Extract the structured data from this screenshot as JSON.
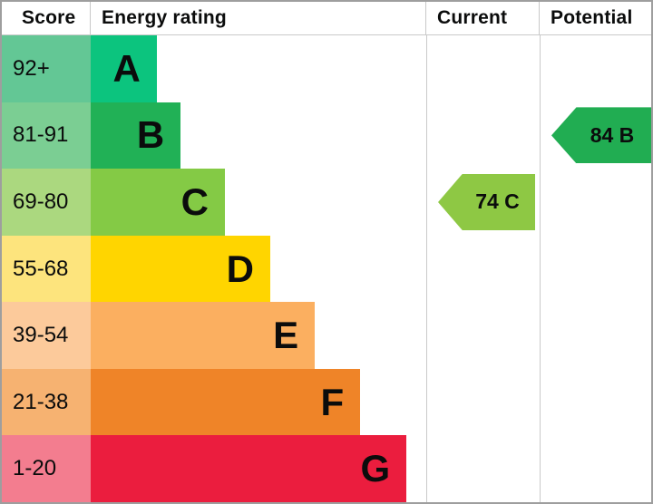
{
  "header": {
    "score": "Score",
    "energy_rating": "Energy rating",
    "current": "Current",
    "potential": "Potential"
  },
  "chart_data": {
    "type": "bar",
    "subtype": "epc-energy-rating-scale",
    "orientation": "horizontal",
    "columns": [
      "Score",
      "Energy rating",
      "Current",
      "Potential"
    ],
    "bands": [
      {
        "letter": "A",
        "score_range": "92+",
        "score_min": 92,
        "score_max": 100,
        "bar_color": "#0cc47e",
        "score_bg": "#63c795",
        "bar_width_pct": 19.7
      },
      {
        "letter": "B",
        "score_range": "81-91",
        "score_min": 81,
        "score_max": 91,
        "bar_color": "#21b156",
        "score_bg": "#7bce93",
        "bar_width_pct": 26.8
      },
      {
        "letter": "C",
        "score_range": "69-80",
        "score_min": 69,
        "score_max": 80,
        "bar_color": "#84ca45",
        "score_bg": "#abd87f",
        "bar_width_pct": 40.0
      },
      {
        "letter": "D",
        "score_range": "55-68",
        "score_min": 55,
        "score_max": 68,
        "bar_color": "#ffd500",
        "score_bg": "#fde47d",
        "bar_width_pct": 53.5
      },
      {
        "letter": "E",
        "score_range": "39-54",
        "score_min": 39,
        "score_max": 54,
        "bar_color": "#fbaf60",
        "score_bg": "#fcca9b",
        "bar_width_pct": 66.8
      },
      {
        "letter": "F",
        "score_range": "21-38",
        "score_min": 21,
        "score_max": 38,
        "bar_color": "#ef8428",
        "score_bg": "#f6b271",
        "bar_width_pct": 80.3
      },
      {
        "letter": "G",
        "score_range": "1-20",
        "score_min": 1,
        "score_max": 20,
        "bar_color": "#eb1d3e",
        "score_bg": "#f37d8f",
        "bar_width_pct": 94.1
      }
    ],
    "markers": [
      {
        "name": "current",
        "label": "74 C",
        "value": 74,
        "band": "C",
        "color": "#8ec844"
      },
      {
        "name": "potential",
        "label": "84 B",
        "value": 84,
        "band": "B",
        "color": "#21ad52"
      }
    ],
    "layout_hints": {
      "grid": false,
      "legend": false,
      "value_axis_hidden": true
    }
  }
}
